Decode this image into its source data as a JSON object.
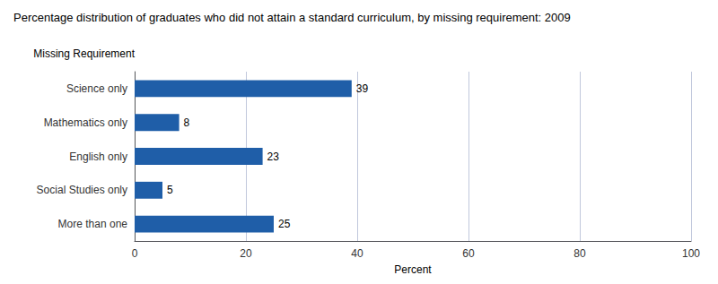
{
  "chart_data": {
    "type": "bar",
    "orientation": "horizontal",
    "title": "Percentage distribution of graduates who did not attain a standard curriculum, by missing requirement: 2009",
    "ylabel": "Missing Requirement",
    "xlabel": "Percent",
    "categories": [
      "More than one",
      "Social Studies only",
      "English only",
      "Mathematics only",
      "Science only"
    ],
    "values": [
      25,
      5,
      23,
      8,
      39
    ],
    "color": "#1f5ea8",
    "xlim": [
      0,
      100
    ],
    "xticks": [
      0,
      20,
      40,
      60,
      80,
      100
    ],
    "grid": true,
    "data_labels": true
  }
}
